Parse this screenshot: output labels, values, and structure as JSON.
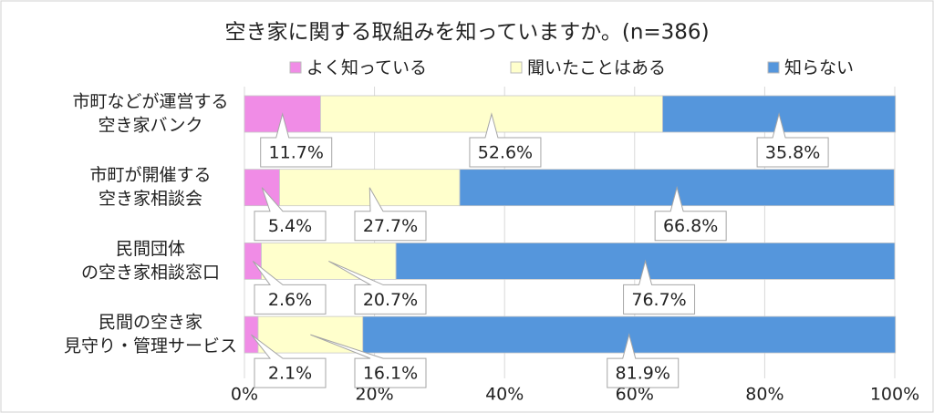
{
  "chart_data": {
    "type": "stacked-bar-horizontal",
    "title": "空き家に関する取組みを知っていますか。(n=386)",
    "categories": [
      [
        "市町などが運営する",
        "空き家バンク"
      ],
      [
        "市町が開催する",
        "空き家相談会"
      ],
      [
        "民間団体",
        "の空き家相談窓口"
      ],
      [
        "民間の空き家",
        "見守り・管理サービス"
      ]
    ],
    "series": [
      {
        "name": "よく知っている",
        "color": "#f08ce6",
        "values": [
          11.7,
          5.4,
          2.6,
          2.1
        ],
        "value_labels": [
          "11.7%",
          "5.4%",
          "2.6%",
          "2.1%"
        ]
      },
      {
        "name": "聞いたことはある",
        "color": "#ffffcc",
        "values": [
          52.6,
          27.7,
          20.7,
          16.1
        ],
        "value_labels": [
          "52.6%",
          "27.7%",
          "20.7%",
          "16.1%"
        ]
      },
      {
        "name": "知らない",
        "color": "#5596dc",
        "values": [
          35.8,
          66.8,
          76.7,
          81.9
        ],
        "value_labels": [
          "35.8%",
          "66.8%",
          "76.7%",
          "81.9%"
        ]
      }
    ],
    "xlim": [
      0,
      100
    ],
    "xticks": [
      {
        "value": 0,
        "label": "0%"
      },
      {
        "value": 20,
        "label": "20%"
      },
      {
        "value": 40,
        "label": "40%"
      },
      {
        "value": 60,
        "label": "60%"
      },
      {
        "value": 80,
        "label": "80%"
      },
      {
        "value": 100,
        "label": "100%"
      }
    ],
    "grid": true
  }
}
